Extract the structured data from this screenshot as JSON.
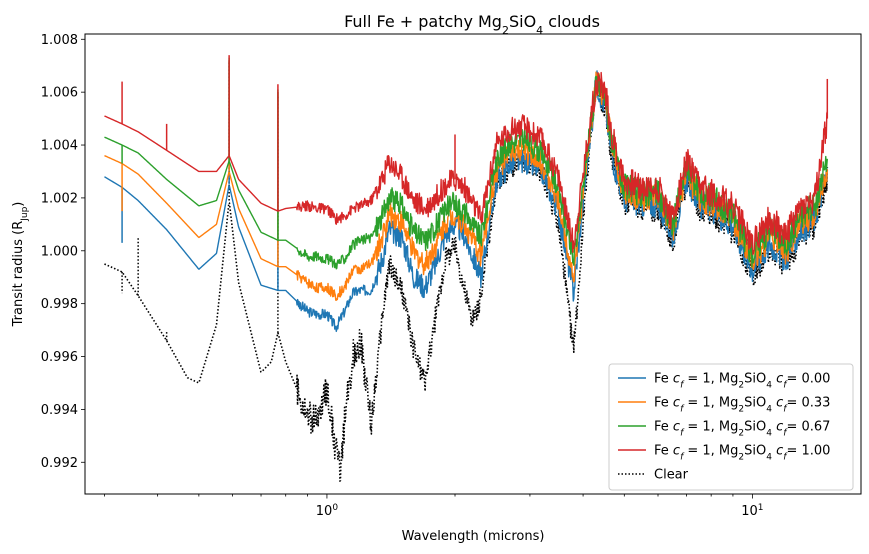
{
  "chart_data": {
    "type": "line",
    "title": "Full Fe + patchy Mg₂SiO₄ clouds",
    "title_parts": [
      "Full Fe + patchy Mg",
      "2",
      "SiO",
      "4",
      " clouds"
    ],
    "xlabel": "Wavelength (microns)",
    "ylabel": "Transit radius (R",
    "ylabel_sub": "Jup",
    "ylabel_end": ")",
    "x_scale": "log",
    "xlim": [
      0.27,
      18
    ],
    "ylim": [
      0.9908,
      1.0082
    ],
    "x_major_ticks": [
      {
        "value": 1,
        "base": "10",
        "exp": "0"
      },
      {
        "value": 10,
        "base": "10",
        "exp": "1"
      }
    ],
    "y_ticks": [
      {
        "value": 0.992,
        "label": "0.992"
      },
      {
        "value": 0.994,
        "label": "0.994"
      },
      {
        "value": 0.996,
        "label": "0.996"
      },
      {
        "value": 0.998,
        "label": "0.998"
      },
      {
        "value": 1.0,
        "label": "1.000"
      },
      {
        "value": 1.002,
        "label": "1.002"
      },
      {
        "value": 1.004,
        "label": "1.004"
      },
      {
        "value": 1.006,
        "label": "1.006"
      },
      {
        "value": 1.008,
        "label": "1.008"
      }
    ],
    "legend_position": "lower-right",
    "series": [
      {
        "name": "Fe c_f = 1, Mg₂SiO₄ c_f = 0.00",
        "legend_value": "0.00",
        "color": "#1f77b4",
        "style": "solid",
        "x": [
          0.3,
          0.33,
          0.36,
          0.42,
          0.5,
          0.55,
          0.589,
          0.62,
          0.7,
          0.767,
          0.8,
          0.9,
          0.95,
          1.0,
          1.05,
          1.1,
          1.15,
          1.2,
          1.27,
          1.35,
          1.4,
          1.5,
          1.6,
          1.7,
          1.8,
          1.9,
          2.0,
          2.1,
          2.2,
          2.3,
          2.5,
          2.7,
          2.9,
          3.2,
          3.5,
          3.8,
          4.1,
          4.3,
          4.5,
          4.7,
          5.0,
          5.5,
          6.0,
          6.5,
          7.0,
          7.5,
          8.0,
          9.0,
          10.0,
          11.0,
          12.0,
          13.0,
          14.0,
          15.0
        ],
        "y": [
          1.0028,
          1.0024,
          1.0019,
          1.0008,
          0.9993,
          0.9999,
          1.0025,
          1.0009,
          0.9987,
          0.9985,
          0.9985,
          0.9977,
          0.9976,
          0.9976,
          0.9971,
          0.9977,
          0.9984,
          0.9985,
          0.9985,
          0.9997,
          1.0008,
          1.0005,
          0.999,
          0.9986,
          0.9995,
          1.0006,
          1.001,
          1.0006,
          0.9998,
          0.999,
          1.0026,
          1.0033,
          1.0034,
          1.003,
          1.0015,
          0.9984,
          1.0035,
          1.0064,
          1.0055,
          1.0035,
          1.002,
          1.0018,
          1.0018,
          1.0006,
          1.0028,
          1.0018,
          1.0016,
          1.001,
          0.9993,
          1.0003,
          0.9997,
          1.0008,
          1.0012,
          1.003
        ],
        "spikes": [
          {
            "x": 0.33,
            "y": 1.0003
          },
          {
            "x": 0.589,
            "y": 1.0072
          },
          {
            "x": 0.767,
            "y": 1.006
          }
        ]
      },
      {
        "name": "Fe c_f = 1, Mg₂SiO₄ c_f = 0.33",
        "legend_value": "0.33",
        "color": "#ff7f0e",
        "style": "solid",
        "x": [
          0.3,
          0.33,
          0.36,
          0.42,
          0.5,
          0.55,
          0.589,
          0.62,
          0.7,
          0.767,
          0.8,
          0.9,
          0.95,
          1.0,
          1.05,
          1.1,
          1.15,
          1.2,
          1.27,
          1.35,
          1.4,
          1.5,
          1.6,
          1.7,
          1.8,
          1.9,
          2.0,
          2.1,
          2.2,
          2.3,
          2.5,
          2.7,
          2.9,
          3.2,
          3.5,
          3.8,
          4.1,
          4.3,
          4.5,
          4.7,
          5.0,
          5.5,
          6.0,
          6.5,
          7.0,
          7.5,
          8.0,
          9.0,
          10.0,
          11.0,
          12.0,
          13.0,
          14.0,
          15.0
        ],
        "y": [
          1.0036,
          1.0033,
          1.0029,
          1.0018,
          1.0005,
          1.001,
          1.003,
          1.0016,
          0.9997,
          0.9994,
          0.9994,
          0.9988,
          0.9986,
          0.9986,
          0.9983,
          0.9986,
          0.9993,
          0.9993,
          0.9995,
          1.0005,
          1.0014,
          1.0011,
          0.9999,
          0.9995,
          1.0002,
          1.0011,
          1.0014,
          1.001,
          1.0004,
          0.9998,
          1.003,
          1.0037,
          1.0038,
          1.0033,
          1.0019,
          0.999,
          1.0037,
          1.0064,
          1.0057,
          1.0037,
          1.0022,
          1.002,
          1.002,
          1.0008,
          1.003,
          1.002,
          1.0018,
          1.0012,
          0.9996,
          1.0006,
          1.0,
          1.0011,
          1.0014,
          1.0032
        ],
        "spikes": [
          {
            "x": 0.33,
            "y": 1.0015
          },
          {
            "x": 0.589,
            "y": 1.0072
          },
          {
            "x": 0.767,
            "y": 1.006
          }
        ]
      },
      {
        "name": "Fe c_f = 1, Mg₂SiO₄ c_f = 0.67",
        "legend_value": "0.67",
        "color": "#2ca02c",
        "style": "solid",
        "x": [
          0.3,
          0.33,
          0.36,
          0.42,
          0.5,
          0.55,
          0.589,
          0.62,
          0.7,
          0.767,
          0.8,
          0.9,
          0.95,
          1.0,
          1.05,
          1.1,
          1.15,
          1.2,
          1.27,
          1.35,
          1.4,
          1.5,
          1.6,
          1.7,
          1.8,
          1.9,
          2.0,
          2.1,
          2.2,
          2.3,
          2.5,
          2.7,
          2.9,
          3.2,
          3.5,
          3.8,
          4.1,
          4.3,
          4.5,
          4.7,
          5.0,
          5.5,
          6.0,
          6.5,
          7.0,
          7.5,
          8.0,
          9.0,
          10.0,
          11.0,
          12.0,
          13.0,
          14.0,
          15.0
        ],
        "y": [
          1.0043,
          1.004,
          1.0037,
          1.0027,
          1.0017,
          1.0019,
          1.0034,
          1.0023,
          1.0007,
          1.0004,
          1.0004,
          0.9998,
          0.9998,
          0.9997,
          0.9995,
          0.9997,
          1.0002,
          1.0004,
          1.0005,
          1.0013,
          1.002,
          1.0017,
          1.0007,
          1.0004,
          1.0009,
          1.0016,
          1.0018,
          1.0015,
          1.001,
          1.0005,
          1.0034,
          1.0041,
          1.0042,
          1.0037,
          1.0024,
          0.9996,
          1.0039,
          1.0064,
          1.0059,
          1.0039,
          1.0024,
          1.0022,
          1.0022,
          1.001,
          1.0032,
          1.0022,
          1.002,
          1.0014,
          0.9999,
          1.0009,
          1.0003,
          1.0014,
          1.0016,
          1.0034
        ],
        "spikes": [
          {
            "x": 0.33,
            "y": 1.0033
          },
          {
            "x": 0.589,
            "y": 1.0073
          },
          {
            "x": 0.767,
            "y": 1.0061
          }
        ]
      },
      {
        "name": "Fe c_f = 1, Mg₂SiO₄ c_f = 1.00",
        "legend_value": "1.00",
        "color": "#d62728",
        "style": "solid",
        "x": [
          0.3,
          0.33,
          0.36,
          0.42,
          0.5,
          0.55,
          0.589,
          0.62,
          0.7,
          0.767,
          0.8,
          0.9,
          0.95,
          1.0,
          1.05,
          1.1,
          1.15,
          1.2,
          1.27,
          1.35,
          1.4,
          1.5,
          1.6,
          1.7,
          1.8,
          1.9,
          2.0,
          2.1,
          2.2,
          2.3,
          2.5,
          2.7,
          2.9,
          3.2,
          3.5,
          3.8,
          4.1,
          4.3,
          4.5,
          4.7,
          5.0,
          5.5,
          6.0,
          6.5,
          7.0,
          7.5,
          8.0,
          9.0,
          10.0,
          11.0,
          12.0,
          13.0,
          14.0,
          15.0
        ],
        "y": [
          1.0051,
          1.0048,
          1.0045,
          1.0038,
          1.003,
          1.003,
          1.0036,
          1.0027,
          1.0018,
          1.0015,
          1.0016,
          1.0017,
          1.0016,
          1.0016,
          1.0012,
          1.0013,
          1.0016,
          1.0017,
          1.0019,
          1.0027,
          1.0034,
          1.0028,
          1.0019,
          1.0016,
          1.002,
          1.0025,
          1.0027,
          1.0024,
          1.0018,
          1.0012,
          1.004,
          1.0046,
          1.0047,
          1.0042,
          1.0028,
          1.0002,
          1.0042,
          1.0064,
          1.0061,
          1.0042,
          1.0027,
          1.0024,
          1.0024,
          1.0012,
          1.0034,
          1.0024,
          1.0022,
          1.0017,
          1.0003,
          1.0012,
          1.0006,
          1.0017,
          1.0019,
          1.005
        ],
        "spikes": [
          {
            "x": 0.33,
            "y": 1.0064
          },
          {
            "x": 0.42,
            "y": 1.0048
          },
          {
            "x": 0.589,
            "y": 1.0074
          },
          {
            "x": 0.767,
            "y": 1.0063
          },
          {
            "x": 2.0,
            "y": 1.0044
          },
          {
            "x": 15.0,
            "y": 1.0065
          }
        ]
      },
      {
        "name": "Clear",
        "legend_value": "",
        "color": "#000000",
        "style": "dotted",
        "x": [
          0.3,
          0.33,
          0.36,
          0.42,
          0.47,
          0.5,
          0.55,
          0.589,
          0.62,
          0.7,
          0.74,
          0.767,
          0.8,
          0.9,
          0.95,
          1.0,
          1.05,
          1.08,
          1.1,
          1.15,
          1.2,
          1.27,
          1.35,
          1.4,
          1.5,
          1.6,
          1.7,
          1.8,
          1.9,
          2.0,
          2.1,
          2.2,
          2.3,
          2.5,
          2.7,
          2.9,
          3.2,
          3.5,
          3.8,
          4.1,
          4.3,
          4.5,
          4.7,
          5.0,
          5.5,
          6.0,
          6.5,
          7.0,
          7.5,
          8.0,
          9.0,
          10.0,
          11.0,
          12.0,
          13.0,
          14.0,
          15.0
        ],
        "y": [
          0.9995,
          0.9992,
          0.9983,
          0.9966,
          0.9952,
          0.995,
          0.9972,
          1.0019,
          0.9988,
          0.9954,
          0.9958,
          0.9969,
          0.9958,
          0.9938,
          0.9935,
          0.9949,
          0.9924,
          0.9917,
          0.9935,
          0.996,
          0.9966,
          0.9934,
          0.9975,
          0.9995,
          0.9985,
          0.9963,
          0.995,
          0.9975,
          0.9997,
          1.0002,
          0.9986,
          0.9973,
          0.9982,
          1.0026,
          1.0032,
          1.0034,
          1.003,
          1.001,
          0.9962,
          1.0032,
          1.0064,
          1.0054,
          1.0034,
          1.0019,
          1.0017,
          1.0016,
          1.0004,
          1.0027,
          1.0017,
          1.0015,
          1.0008,
          0.9991,
          1.0001,
          0.9995,
          1.0006,
          1.001,
          1.0027
        ],
        "spikes": [
          {
            "x": 0.33,
            "y": 0.9984
          },
          {
            "x": 0.36,
            "y": 1.0005
          },
          {
            "x": 0.42,
            "y": 0.997
          },
          {
            "x": 0.589,
            "y": 1.0072
          },
          {
            "x": 0.767,
            "y": 1.0059
          }
        ]
      }
    ],
    "legend": [
      {
        "series": 0,
        "prefix": "Fe ",
        "cf": "c",
        "cf_sub": "f",
        "mid": " = 1, Mg",
        "sub1": "2",
        "mid2": "SiO",
        "sub2": "4",
        "mid3": " c",
        "cf_sub2": "f",
        "suffix": "= 0.00"
      },
      {
        "series": 1,
        "prefix": "Fe ",
        "cf": "c",
        "cf_sub": "f",
        "mid": " = 1, Mg",
        "sub1": "2",
        "mid2": "SiO",
        "sub2": "4",
        "mid3": " c",
        "cf_sub2": "f",
        "suffix": "= 0.33"
      },
      {
        "series": 2,
        "prefix": "Fe ",
        "cf": "c",
        "cf_sub": "f",
        "mid": " = 1, Mg",
        "sub1": "2",
        "mid2": "SiO",
        "sub2": "4",
        "mid3": " c",
        "cf_sub2": "f",
        "suffix": "= 0.67"
      },
      {
        "series": 3,
        "prefix": "Fe ",
        "cf": "c",
        "cf_sub": "f",
        "mid": " = 1, Mg",
        "sub1": "2",
        "mid2": "SiO",
        "sub2": "4",
        "mid3": " c",
        "cf_sub2": "f",
        "suffix": "= 1.00"
      },
      {
        "series": 4,
        "label": "Clear"
      }
    ]
  }
}
